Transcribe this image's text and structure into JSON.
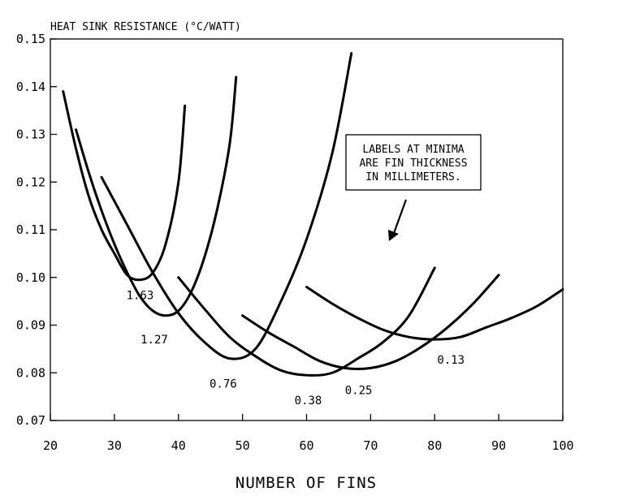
{
  "chart_data": {
    "type": "line",
    "title": "",
    "ylabel": "HEAT SINK RESISTANCE (°C/WATT)",
    "xlabel": "NUMBER OF FINS",
    "xlim": [
      20,
      100
    ],
    "ylim": [
      0.07,
      0.15
    ],
    "x_ticks": [
      "20",
      "30",
      "40",
      "50",
      "60",
      "70",
      "80",
      "90",
      "100"
    ],
    "y_ticks": [
      "0.07",
      "0.08",
      "0.09",
      "0.10",
      "0.11",
      "0.12",
      "0.13",
      "0.14",
      "0.15"
    ],
    "grid": false,
    "series": [
      {
        "label": "1.63",
        "points": [
          [
            22,
            0.139
          ],
          [
            24,
            0.127
          ],
          [
            26,
            0.117
          ],
          [
            28,
            0.11
          ],
          [
            30,
            0.105
          ],
          [
            32,
            0.1005
          ],
          [
            34,
            0.0995
          ],
          [
            36,
            0.101
          ],
          [
            38,
            0.107
          ],
          [
            40,
            0.12
          ],
          [
            41,
            0.136
          ]
        ],
        "minimum": [
          34,
          0.0995
        ]
      },
      {
        "label": "1.27",
        "points": [
          [
            24,
            0.131
          ],
          [
            26,
            0.122
          ],
          [
            28,
            0.114
          ],
          [
            30,
            0.107
          ],
          [
            32,
            0.101
          ],
          [
            34,
            0.096
          ],
          [
            36,
            0.093
          ],
          [
            38,
            0.092
          ],
          [
            40,
            0.093
          ],
          [
            42,
            0.097
          ],
          [
            44,
            0.104
          ],
          [
            46,
            0.114
          ],
          [
            48,
            0.128
          ],
          [
            49,
            0.142
          ]
        ],
        "minimum": [
          38,
          0.092
        ]
      },
      {
        "label": "0.76",
        "points": [
          [
            28,
            0.121
          ],
          [
            32,
            0.111
          ],
          [
            36,
            0.101
          ],
          [
            40,
            0.0925
          ],
          [
            44,
            0.0865
          ],
          [
            48,
            0.083
          ],
          [
            52,
            0.085
          ],
          [
            56,
            0.095
          ],
          [
            60,
            0.108
          ],
          [
            64,
            0.126
          ],
          [
            67,
            0.147
          ]
        ],
        "minimum": [
          48,
          0.083
        ]
      },
      {
        "label": "0.38",
        "points": [
          [
            40,
            0.1
          ],
          [
            44,
            0.0935
          ],
          [
            48,
            0.0875
          ],
          [
            52,
            0.0835
          ],
          [
            56,
            0.0805
          ],
          [
            60,
            0.0795
          ],
          [
            64,
            0.08
          ],
          [
            68,
            0.083
          ],
          [
            72,
            0.0865
          ],
          [
            76,
            0.092
          ],
          [
            80,
            0.102
          ]
        ],
        "minimum": [
          60,
          0.0795
        ]
      },
      {
        "label": "0.25",
        "points": [
          [
            50,
            0.092
          ],
          [
            54,
            0.0885
          ],
          [
            58,
            0.0855
          ],
          [
            62,
            0.0825
          ],
          [
            66,
            0.081
          ],
          [
            70,
            0.081
          ],
          [
            74,
            0.0825
          ],
          [
            78,
            0.0855
          ],
          [
            82,
            0.0895
          ],
          [
            86,
            0.0945
          ],
          [
            90,
            0.1005
          ]
        ],
        "minimum": [
          68,
          0.081
        ]
      },
      {
        "label": "0.13",
        "points": [
          [
            60,
            0.098
          ],
          [
            64,
            0.0945
          ],
          [
            68,
            0.0915
          ],
          [
            72,
            0.089
          ],
          [
            76,
            0.0875
          ],
          [
            80,
            0.087
          ],
          [
            84,
            0.0875
          ],
          [
            88,
            0.0895
          ],
          [
            92,
            0.0915
          ],
          [
            96,
            0.094
          ],
          [
            100,
            0.0975
          ]
        ],
        "minimum": [
          80,
          0.087
        ]
      }
    ],
    "annotation": {
      "lines": [
        "LABELS AT MINIMA",
        "ARE FIN THICKNESS",
        "IN MILLIMETERS."
      ]
    }
  }
}
